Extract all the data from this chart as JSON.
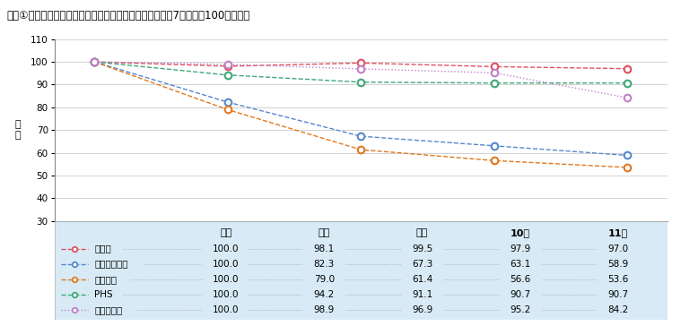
{
  "title": "図表①　企業向けサービス価格指数（移動通信）の推移（7年平均を100とする）",
  "x_labels": [
    "７年",
    "８年",
    "９年",
    "10年",
    "11年"
  ],
  "x_values": [
    0,
    1,
    2,
    3,
    4
  ],
  "ylabel": "指\n数",
  "ylim": [
    30,
    110
  ],
  "yticks": [
    30,
    40,
    50,
    60,
    70,
    80,
    90,
    100,
    110
  ],
  "series": [
    {
      "label": "総平均",
      "values": [
        100.0,
        98.1,
        99.5,
        97.9,
        97.0
      ],
      "color": "#e05060",
      "linestyle": "--"
    },
    {
      "label": "移動通信全体",
      "values": [
        100.0,
        82.3,
        67.3,
        63.1,
        58.9
      ],
      "color": "#5588cc",
      "linestyle": "--"
    },
    {
      "label": "携帯電話",
      "values": [
        100.0,
        79.0,
        61.4,
        56.6,
        53.6
      ],
      "color": "#e07820",
      "linestyle": "--"
    },
    {
      "label": "PHS",
      "values": [
        100.0,
        94.2,
        91.1,
        90.7,
        90.7
      ],
      "color": "#40a878",
      "linestyle": "--"
    },
    {
      "label": "無線呼出し",
      "values": [
        100.0,
        98.9,
        96.9,
        95.2,
        84.2
      ],
      "color": "#c080c8",
      "linestyle": ":"
    }
  ],
  "table_bg_color": "#d8eaf5",
  "table_header": [
    "７年",
    "８年",
    "９年",
    "10年",
    "11年"
  ],
  "table_rows": [
    [
      "総平均",
      "100.0",
      "98.1",
      "99.5",
      "97.9",
      "97.0"
    ],
    [
      "移動通信全体",
      "100.0",
      "82.3",
      "67.3",
      "63.1",
      "58.9"
    ],
    [
      "携帯電話",
      "100.0",
      "79.0",
      "61.4",
      "56.6",
      "53.6"
    ],
    [
      "PHS",
      "100.0",
      "94.2",
      "91.1",
      "90.7",
      "90.7"
    ],
    [
      "無線呼出し",
      "100.0",
      "98.9",
      "96.9",
      "95.2",
      "84.2"
    ]
  ]
}
